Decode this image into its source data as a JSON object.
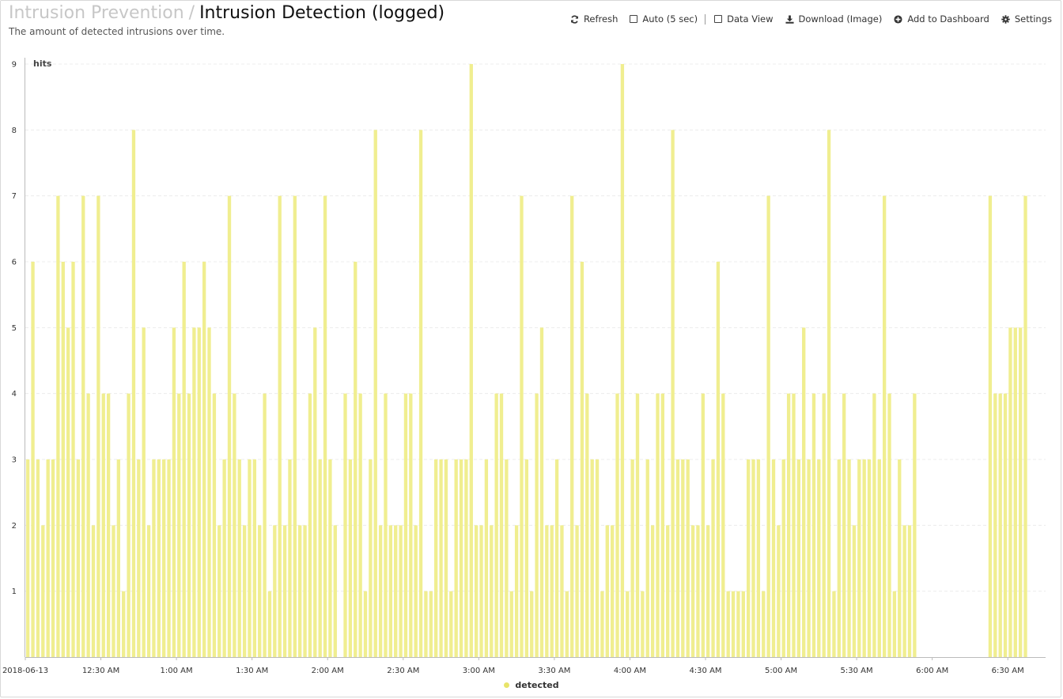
{
  "header": {
    "breadcrumb_parent": "Intrusion Prevention",
    "separator": "/",
    "title": "Intrusion Detection (logged)",
    "subtitle": "The amount of detected intrusions over time."
  },
  "toolbar": {
    "refresh_label": "Refresh",
    "auto_label": "Auto (5 sec)",
    "dataview_label": "Data View",
    "download_label": "Download (Image)",
    "dashboard_label": "Add to Dashboard",
    "settings_label": "Settings"
  },
  "colors": {
    "bar": "#f0ee90",
    "legend_dot": "#e8e46a"
  },
  "chart_data": {
    "type": "bar",
    "title": "",
    "ylabel": "hits",
    "xlabel": "",
    "ylim": [
      0,
      9
    ],
    "yticks": [
      1,
      2,
      3,
      4,
      5,
      6,
      7,
      8,
      9
    ],
    "grid": true,
    "legend_position": "bottom-center",
    "x_start": "2018-06-13 00:00",
    "x_end": "2018-06-13 06:45",
    "bucket_minutes": 2,
    "x_tick_labels": [
      {
        "t": "2018-06-13 00:00",
        "label": "2018-06-13"
      },
      {
        "t": "2018-06-13 00:30",
        "label": "12:30 AM"
      },
      {
        "t": "2018-06-13 01:00",
        "label": "1:00 AM"
      },
      {
        "t": "2018-06-13 01:30",
        "label": "1:30 AM"
      },
      {
        "t": "2018-06-13 02:00",
        "label": "2:00 AM"
      },
      {
        "t": "2018-06-13 02:30",
        "label": "2:30 AM"
      },
      {
        "t": "2018-06-13 03:00",
        "label": "3:00 AM"
      },
      {
        "t": "2018-06-13 03:30",
        "label": "3:30 AM"
      },
      {
        "t": "2018-06-13 04:00",
        "label": "4:00 AM"
      },
      {
        "t": "2018-06-13 04:30",
        "label": "4:30 AM"
      },
      {
        "t": "2018-06-13 05:00",
        "label": "5:00 AM"
      },
      {
        "t": "2018-06-13 05:30",
        "label": "5:30 AM"
      },
      {
        "t": "2018-06-13 06:00",
        "label": "6:00 AM"
      },
      {
        "t": "2018-06-13 06:30",
        "label": "6:30 AM"
      }
    ],
    "series": [
      {
        "name": "detected",
        "values": [
          3,
          6,
          3,
          2,
          3,
          3,
          7,
          6,
          5,
          6,
          3,
          7,
          4,
          2,
          7,
          4,
          4,
          2,
          3,
          1,
          4,
          8,
          3,
          5,
          2,
          3,
          3,
          3,
          3,
          5,
          4,
          6,
          4,
          5,
          5,
          6,
          5,
          4,
          2,
          3,
          7,
          4,
          3,
          2,
          3,
          3,
          2,
          4,
          1,
          2,
          7,
          2,
          3,
          7,
          2,
          2,
          4,
          5,
          3,
          7,
          3,
          2,
          0,
          4,
          3,
          6,
          4,
          1,
          3,
          8,
          2,
          4,
          2,
          2,
          2,
          4,
          4,
          2,
          8,
          1,
          1,
          3,
          3,
          3,
          1,
          3,
          3,
          3,
          9,
          2,
          2,
          3,
          2,
          4,
          4,
          3,
          1,
          2,
          7,
          3,
          1,
          4,
          5,
          2,
          2,
          3,
          2,
          1,
          7,
          2,
          6,
          4,
          3,
          3,
          1,
          2,
          2,
          4,
          9,
          1,
          3,
          4,
          1,
          3,
          2,
          4,
          4,
          2,
          8,
          3,
          3,
          3,
          2,
          2,
          4,
          2,
          3,
          6,
          4,
          1,
          1,
          1,
          1,
          3,
          3,
          3,
          1,
          7,
          3,
          2,
          3,
          4,
          4,
          3,
          5,
          3,
          4,
          3,
          4,
          8,
          1,
          3,
          4,
          3,
          2,
          3,
          3,
          3,
          4,
          3,
          7,
          4,
          1,
          3,
          2,
          2,
          4,
          0,
          0,
          0,
          0,
          0,
          0,
          0,
          0,
          0,
          0,
          0,
          0,
          0,
          0,
          7,
          4,
          4,
          4,
          5,
          5,
          5,
          7
        ]
      }
    ]
  }
}
